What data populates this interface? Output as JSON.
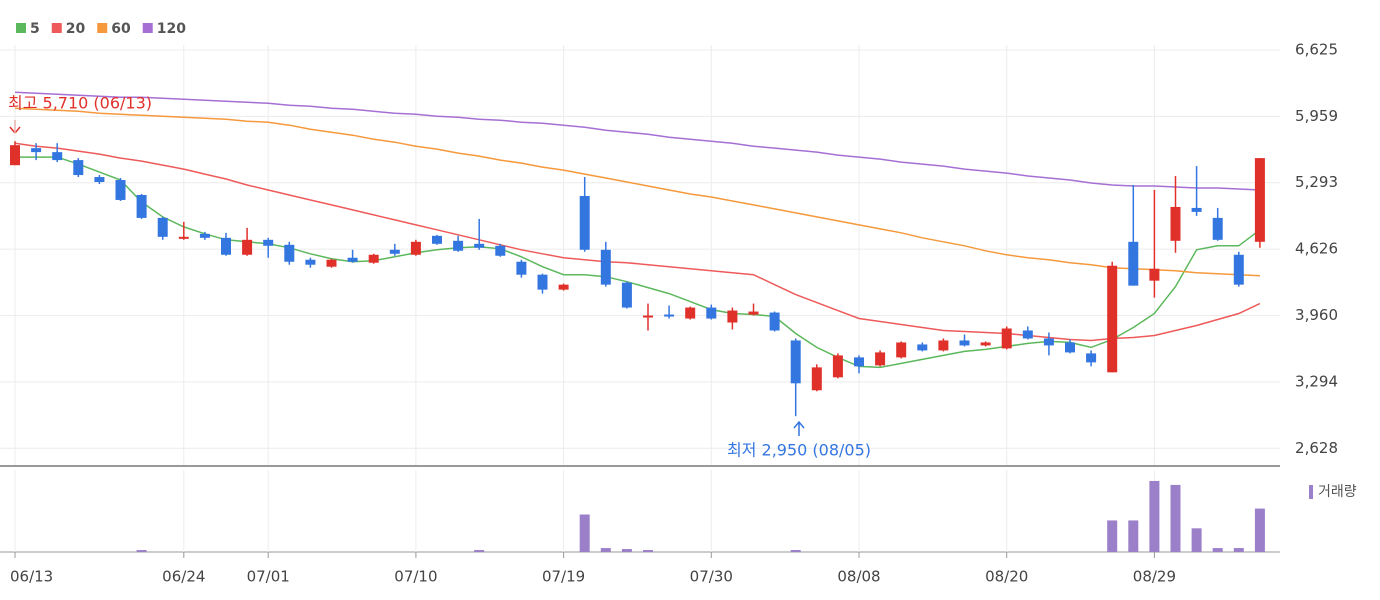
{
  "chart_data": {
    "type": "candlestick",
    "categories": [
      "06/13",
      null,
      null,
      null,
      null,
      null,
      null,
      null,
      "06/24",
      null,
      null,
      null,
      "07/01",
      null,
      null,
      null,
      null,
      null,
      null,
      "07/10",
      null,
      null,
      null,
      null,
      null,
      null,
      "07/19",
      null,
      null,
      null,
      null,
      null,
      null,
      "07/30",
      null,
      null,
      null,
      null,
      null,
      null,
      "08/08",
      null,
      null,
      null,
      null,
      null,
      null,
      "08/20",
      null,
      null,
      null,
      null,
      null,
      null,
      "08/29",
      null,
      null,
      null,
      null,
      null
    ],
    "open": [
      5469,
      5640,
      5600,
      5520,
      5350,
      5320,
      5170,
      4940,
      4740,
      4780,
      4740,
      4570,
      4720,
      4670,
      4520,
      4450,
      4540,
      4490,
      4620,
      4570,
      4760,
      4710,
      4680,
      4660,
      4500,
      4370,
      4220,
      5160,
      4620,
      4290,
      3940,
      3970,
      3930,
      4040,
      3890,
      3970,
      3990,
      3710,
      3210,
      3340,
      3540,
      3460,
      3540,
      3670,
      3610,
      3710,
      3660,
      3630,
      3810,
      3730,
      3690,
      3580,
      3390,
      4700,
      4310,
      4710,
      5040,
      4940,
      4570,
      4700
    ],
    "high": [
      5710,
      5690,
      5690,
      5540,
      5370,
      5340,
      5180,
      4950,
      4900,
      4800,
      4790,
      4840,
      4740,
      4700,
      4540,
      4530,
      4620,
      4580,
      4680,
      4720,
      4770,
      4760,
      4930,
      4680,
      4520,
      4380,
      4280,
      5350,
      4700,
      4300,
      4080,
      4060,
      4050,
      4070,
      4040,
      4080,
      4000,
      3730,
      3470,
      3580,
      3560,
      3610,
      3700,
      3690,
      3730,
      3770,
      3700,
      3850,
      3850,
      3790,
      3720,
      3610,
      4500,
      5270,
      5220,
      5360,
      5460,
      5040,
      4600,
      5540
    ],
    "low": [
      5469,
      5520,
      5500,
      5350,
      5280,
      5110,
      4930,
      4720,
      4720,
      4720,
      4560,
      4560,
      4540,
      4470,
      4440,
      4440,
      4490,
      4480,
      4560,
      4560,
      4670,
      4600,
      4620,
      4550,
      4340,
      4180,
      4210,
      4600,
      4250,
      4030,
      3810,
      3930,
      3920,
      3920,
      3820,
      3960,
      3800,
      2950,
      3200,
      3330,
      3380,
      3450,
      3530,
      3600,
      3600,
      3650,
      3650,
      3620,
      3720,
      3560,
      3580,
      3450,
      3390,
      4260,
      4140,
      4590,
      4960,
      4710,
      4250,
      4640
    ],
    "close": [
      5670,
      5600,
      5520,
      5370,
      5300,
      5120,
      4940,
      4750,
      4750,
      4740,
      4570,
      4720,
      4660,
      4500,
      4470,
      4520,
      4500,
      4570,
      4580,
      4700,
      4680,
      4610,
      4640,
      4560,
      4370,
      4220,
      4270,
      4620,
      4270,
      4040,
      3960,
      3950,
      4040,
      3930,
      4010,
      4000,
      3810,
      3280,
      3440,
      3560,
      3450,
      3590,
      3690,
      3610,
      3710,
      3660,
      3690,
      3830,
      3730,
      3660,
      3590,
      3490,
      4460,
      4260,
      4430,
      5050,
      5000,
      4720,
      4270,
      5540
    ],
    "up_color": "#e0302a",
    "down_color": "#3476e0",
    "series": [
      {
        "name": "5",
        "color": "#5cb85c",
        "values": [
          5550,
          5550,
          5550,
          5480,
          5400,
          5320,
          5100,
          4950,
          4850,
          4780,
          4720,
          4700,
          4680,
          4640,
          4580,
          4530,
          4500,
          4510,
          4550,
          4590,
          4620,
          4640,
          4650,
          4630,
          4550,
          4450,
          4370,
          4370,
          4350,
          4300,
          4240,
          4180,
          4100,
          4020,
          3980,
          3970,
          3950,
          3780,
          3640,
          3540,
          3450,
          3440,
          3480,
          3520,
          3560,
          3600,
          3620,
          3650,
          3680,
          3700,
          3690,
          3640,
          3720,
          3840,
          3980,
          4250,
          4620,
          4660,
          4660,
          4820
        ]
      },
      {
        "name": "20",
        "color": "#ee5a5a",
        "values": [
          5690,
          5660,
          5640,
          5610,
          5580,
          5540,
          5510,
          5470,
          5430,
          5380,
          5330,
          5270,
          5220,
          5170,
          5120,
          5070,
          5020,
          4970,
          4920,
          4870,
          4820,
          4770,
          4720,
          4670,
          4620,
          4580,
          4540,
          4520,
          4500,
          4490,
          4470,
          4450,
          4430,
          4410,
          4390,
          4370,
          4270,
          4170,
          4090,
          4010,
          3930,
          3900,
          3870,
          3840,
          3810,
          3800,
          3790,
          3780,
          3760,
          3740,
          3720,
          3710,
          3730,
          3740,
          3760,
          3810,
          3860,
          3920,
          3980,
          4080
        ]
      },
      {
        "name": "60",
        "color": "#f5993c",
        "values": [
          6040,
          6030,
          6020,
          6010,
          5990,
          5980,
          5970,
          5960,
          5950,
          5940,
          5930,
          5910,
          5900,
          5870,
          5830,
          5800,
          5770,
          5730,
          5700,
          5660,
          5630,
          5590,
          5560,
          5520,
          5490,
          5450,
          5420,
          5380,
          5340,
          5300,
          5260,
          5220,
          5180,
          5150,
          5110,
          5070,
          5030,
          4990,
          4950,
          4910,
          4870,
          4830,
          4790,
          4740,
          4700,
          4660,
          4610,
          4570,
          4540,
          4520,
          4490,
          4470,
          4440,
          4430,
          4420,
          4410,
          4390,
          4380,
          4370,
          4360
        ]
      },
      {
        "name": "120",
        "color": "#a56fd4",
        "values": [
          6200,
          6190,
          6180,
          6170,
          6160,
          6150,
          6150,
          6140,
          6130,
          6120,
          6110,
          6100,
          6090,
          6070,
          6060,
          6040,
          6030,
          6010,
          5990,
          5980,
          5960,
          5950,
          5930,
          5920,
          5900,
          5890,
          5870,
          5850,
          5820,
          5800,
          5780,
          5750,
          5730,
          5710,
          5690,
          5660,
          5640,
          5620,
          5600,
          5570,
          5550,
          5530,
          5500,
          5480,
          5460,
          5430,
          5410,
          5390,
          5360,
          5340,
          5320,
          5290,
          5270,
          5260,
          5260,
          5250,
          5240,
          5240,
          5230,
          5220
        ]
      }
    ],
    "ylim": [
      2460,
      6625
    ],
    "yticks": [
      {
        "value": 2628,
        "label": "2,628"
      },
      {
        "value": 3294,
        "label": "3,294"
      },
      {
        "value": 3960,
        "label": "3,960"
      },
      {
        "value": 4626,
        "label": "4,626"
      },
      {
        "value": 5293,
        "label": "5,293"
      },
      {
        "value": 5959,
        "label": "5,959"
      },
      {
        "value": 6625,
        "label": "6,625"
      }
    ],
    "grid": true,
    "annotations": [
      "최고 5,710 (06/13)",
      "최저 2,950 (08/05)"
    ],
    "volume": {
      "name": "거래량",
      "color": "#9b7fc9",
      "ylim": [
        0,
        75
      ],
      "values": [
        0,
        0,
        0,
        0,
        0,
        0,
        2,
        0,
        0,
        0,
        0,
        0,
        0,
        0,
        0,
        0,
        0,
        0,
        0,
        0,
        0,
        0,
        2,
        0,
        0,
        0,
        0,
        38,
        4,
        3,
        2,
        0,
        0,
        0,
        0,
        0,
        0,
        2,
        0,
        0,
        0,
        0,
        0,
        0,
        0,
        0,
        0,
        0,
        0,
        0,
        0,
        0,
        32,
        32,
        72,
        68,
        24,
        4,
        4,
        44
      ]
    }
  }
}
